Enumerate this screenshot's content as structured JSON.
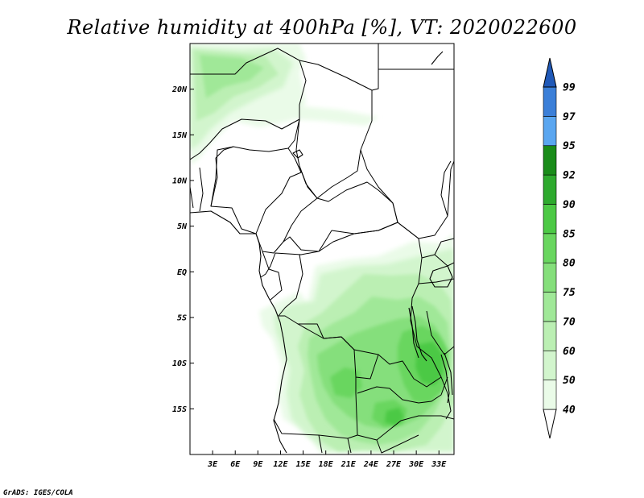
{
  "title": "Relative humidity at 400hPa [%], VT: 2020022600",
  "credit": "GrADS: IGES/COLA",
  "map": {
    "lon_range": [
      0,
      35
    ],
    "lat_range": [
      -20,
      25
    ],
    "lon_ticks": [
      {
        "value": 3,
        "label": "3E"
      },
      {
        "value": 6,
        "label": "6E"
      },
      {
        "value": 9,
        "label": "9E"
      },
      {
        "value": 12,
        "label": "12E"
      },
      {
        "value": 15,
        "label": "15E"
      },
      {
        "value": 18,
        "label": "18E"
      },
      {
        "value": 21,
        "label": "21E"
      },
      {
        "value": 24,
        "label": "24E"
      },
      {
        "value": 27,
        "label": "27E"
      },
      {
        "value": 30,
        "label": "30E"
      },
      {
        "value": 33,
        "label": "33E"
      }
    ],
    "lat_ticks": [
      {
        "value": 20,
        "label": "20N"
      },
      {
        "value": 15,
        "label": "15N"
      },
      {
        "value": 10,
        "label": "10N"
      },
      {
        "value": 5,
        "label": "5N"
      },
      {
        "value": 0,
        "label": "EQ"
      },
      {
        "value": -5,
        "label": "5S"
      },
      {
        "value": -10,
        "label": "10S"
      },
      {
        "value": -15,
        "label": "15S"
      }
    ]
  },
  "colorbar": {
    "levels": [
      "40",
      "50",
      "60",
      "70",
      "75",
      "80",
      "85",
      "90",
      "92",
      "95",
      "97",
      "99"
    ],
    "colors": [
      "#ffffff",
      "#eafbe8",
      "#d2f5cd",
      "#bbefb3",
      "#a0e898",
      "#85df7b",
      "#69d65f",
      "#4cc945",
      "#2eaa2e",
      "#1a8c1a",
      "#5aa6f0",
      "#3b7fd8",
      "#2059b8"
    ],
    "orientation": "vertical"
  },
  "fields": {
    "variable": "Relative humidity",
    "level": "400hPa",
    "units": "%",
    "valid_time": "2020022600"
  }
}
